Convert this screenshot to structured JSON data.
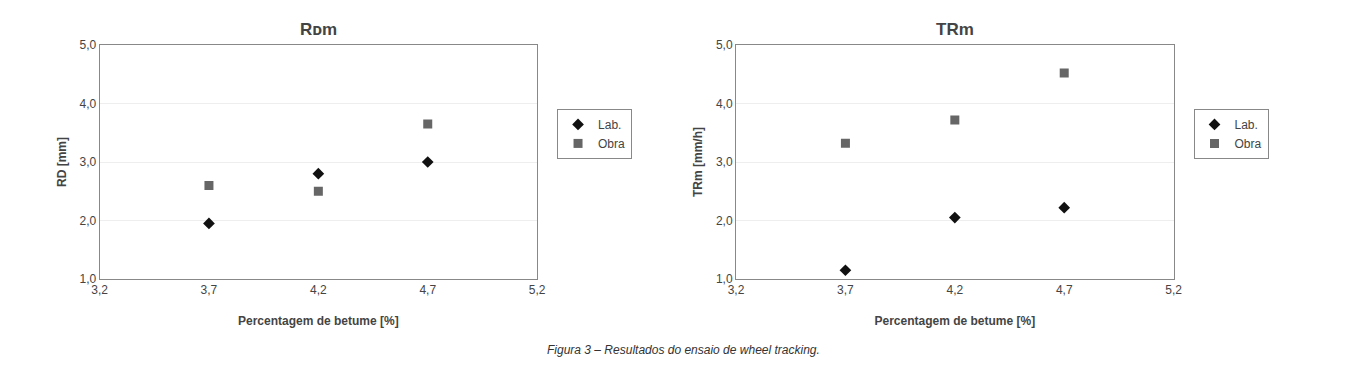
{
  "chart_data": [
    {
      "type": "scatter",
      "title": "Rᴅm",
      "xlabel": "Percentagem de betume [%]",
      "ylabel": "RD [mm]",
      "x": [
        3.7,
        4.2,
        4.7
      ],
      "series": [
        {
          "name": "Lab.",
          "color": "#111111",
          "marker": "diamond",
          "values": [
            1.95,
            2.8,
            3.0
          ]
        },
        {
          "name": "Obra",
          "color": "#666666",
          "marker": "square",
          "values": [
            2.6,
            2.5,
            3.65
          ]
        }
      ],
      "xlim": [
        3.2,
        5.2
      ],
      "ylim": [
        1.0,
        5.0
      ],
      "xticks": [
        {
          "value": 3.2,
          "label": "3,2"
        },
        {
          "value": 3.7,
          "label": "3,7"
        },
        {
          "value": 4.2,
          "label": "4,2"
        },
        {
          "value": 4.7,
          "label": "4,7"
        },
        {
          "value": 5.2,
          "label": "5,2"
        }
      ],
      "yticks": [
        {
          "value": 1.0,
          "label": "1,0"
        },
        {
          "value": 2.0,
          "label": "2,0"
        },
        {
          "value": 3.0,
          "label": "3,0"
        },
        {
          "value": 4.0,
          "label": "4,0"
        },
        {
          "value": 5.0,
          "label": "5,0"
        }
      ],
      "grid": "y",
      "legend": "right"
    },
    {
      "type": "scatter",
      "title": "TRm",
      "xlabel": "Percentagem de betume [%]",
      "ylabel": "TRm [mm/h]",
      "x": [
        3.7,
        4.2,
        4.7
      ],
      "series": [
        {
          "name": "Lab.",
          "color": "#111111",
          "marker": "diamond",
          "values": [
            1.15,
            2.05,
            2.22
          ]
        },
        {
          "name": "Obra",
          "color": "#666666",
          "marker": "square",
          "values": [
            3.32,
            3.72,
            4.52
          ]
        }
      ],
      "xlim": [
        3.2,
        5.2
      ],
      "ylim": [
        1.0,
        5.0
      ],
      "xticks": [
        {
          "value": 3.2,
          "label": "3,2"
        },
        {
          "value": 3.7,
          "label": "3,7"
        },
        {
          "value": 4.2,
          "label": "4,2"
        },
        {
          "value": 4.7,
          "label": "4,7"
        },
        {
          "value": 5.2,
          "label": "5,2"
        }
      ],
      "yticks": [
        {
          "value": 1.0,
          "label": "1,0"
        },
        {
          "value": 2.0,
          "label": "2,0"
        },
        {
          "value": 3.0,
          "label": "3,0"
        },
        {
          "value": 4.0,
          "label": "4,0"
        },
        {
          "value": 5.0,
          "label": "5,0"
        }
      ],
      "grid": "y",
      "legend": "right"
    }
  ],
  "caption": "Figura 3 – Resultados do ensaio de wheel tracking."
}
